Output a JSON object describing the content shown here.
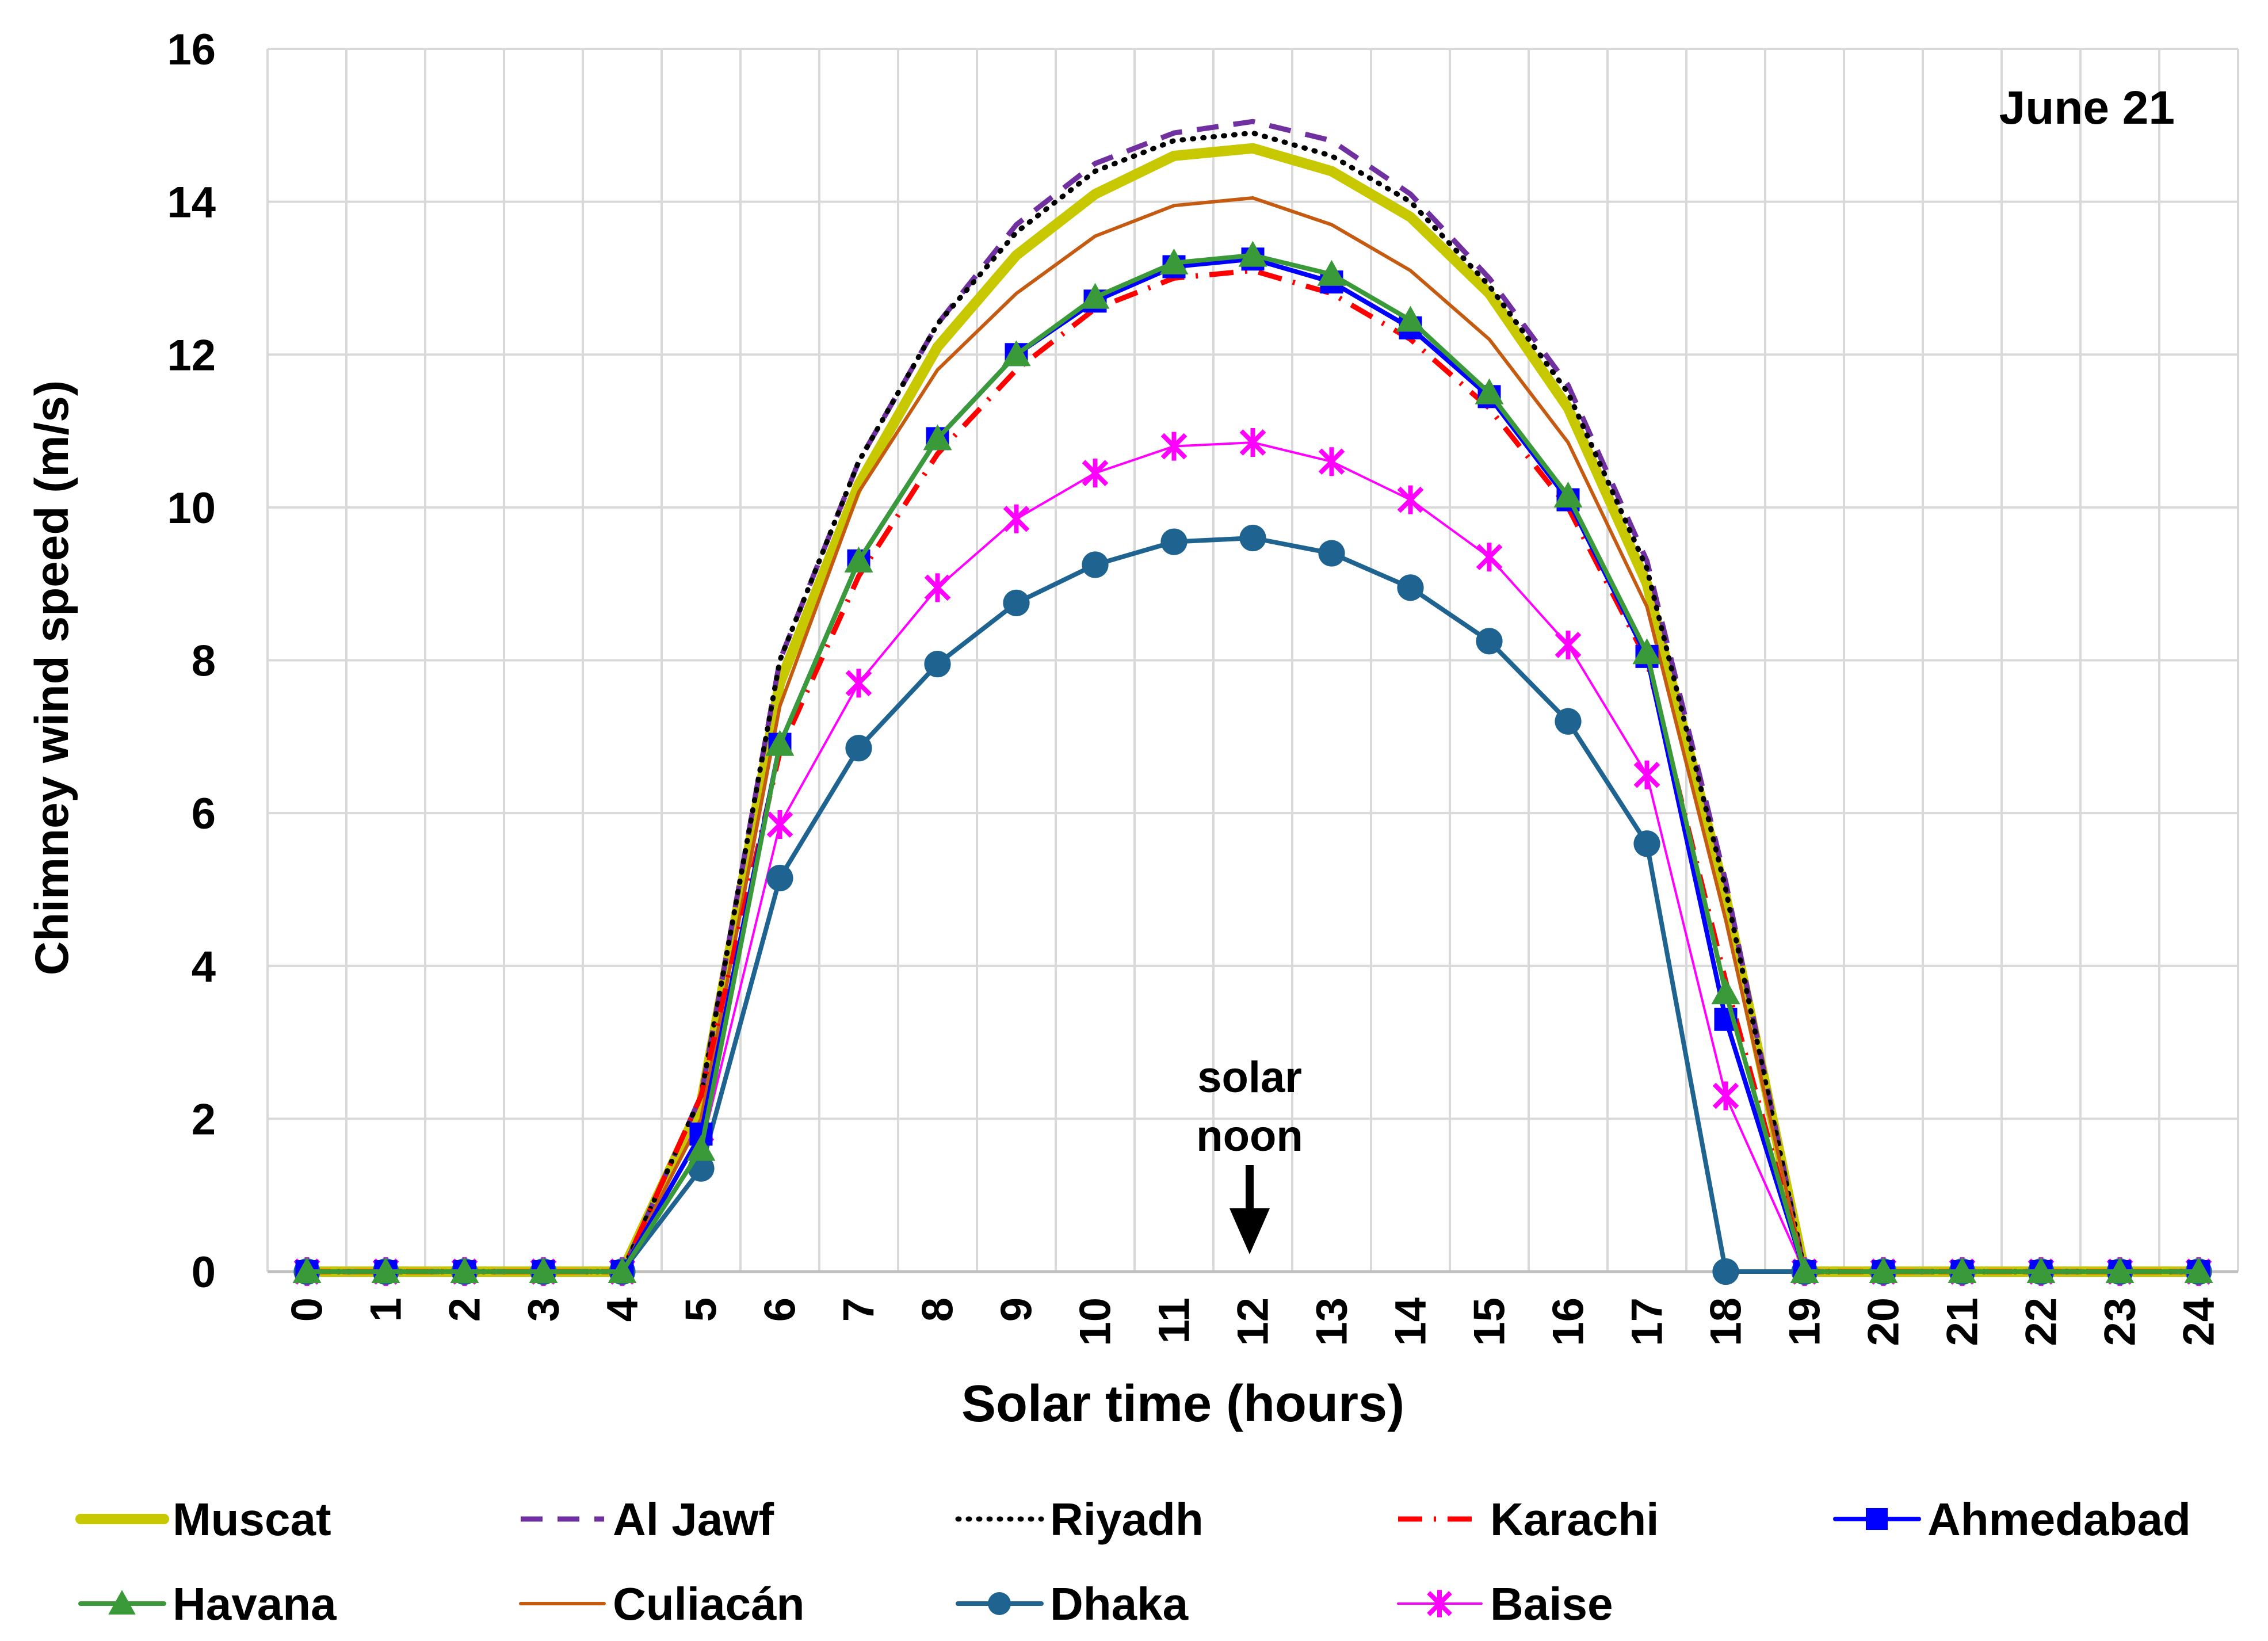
{
  "chart_data": {
    "type": "line",
    "title": "June 21",
    "xlabel": "Solar time (hours)",
    "ylabel": "Chimney wind speed (m/s)",
    "xlim": [
      0,
      24
    ],
    "ylim": [
      0,
      16
    ],
    "x": [
      0,
      1,
      2,
      3,
      4,
      5,
      6,
      7,
      8,
      9,
      10,
      11,
      12,
      13,
      14,
      15,
      16,
      17,
      18,
      19,
      20,
      21,
      22,
      23,
      24
    ],
    "y_ticks": [
      0,
      2,
      4,
      6,
      8,
      10,
      12,
      14,
      16
    ],
    "annotation": {
      "line1": "solar",
      "line2": "noon",
      "x": 12
    },
    "grid": true,
    "legend_position": "bottom",
    "series": [
      {
        "name": "Muscat",
        "color": "#c8c800",
        "style": "thick",
        "values": [
          0,
          0,
          0,
          0,
          0,
          2.2,
          7.7,
          10.3,
          12.1,
          13.3,
          14.1,
          14.6,
          14.7,
          14.4,
          13.8,
          12.8,
          11.3,
          9.0,
          4.9,
          0,
          0,
          0,
          0,
          0,
          0
        ]
      },
      {
        "name": "Al Jawf",
        "color": "#7030a0",
        "style": "dashed",
        "values": [
          0,
          0,
          0,
          0,
          0,
          2.3,
          8.0,
          10.6,
          12.4,
          13.7,
          14.5,
          14.9,
          15.05,
          14.8,
          14.1,
          13.0,
          11.6,
          9.3,
          5.1,
          0,
          0,
          0,
          0,
          0,
          0
        ]
      },
      {
        "name": "Riyadh",
        "color": "#000000",
        "style": "dotted",
        "values": [
          0,
          0,
          0,
          0,
          0,
          2.3,
          8.0,
          10.6,
          12.4,
          13.6,
          14.4,
          14.8,
          14.9,
          14.6,
          14.0,
          12.9,
          11.5,
          9.2,
          5.0,
          0,
          0,
          0,
          0,
          0,
          0
        ]
      },
      {
        "name": "Karachi",
        "color": "#ff0000",
        "style": "dashdot",
        "values": [
          0,
          0,
          0,
          0,
          0,
          2.3,
          6.8,
          9.1,
          10.7,
          11.8,
          12.6,
          13.0,
          13.1,
          12.8,
          12.2,
          11.3,
          10.0,
          8.0,
          3.8,
          0,
          0,
          0,
          0,
          0,
          0
        ]
      },
      {
        "name": "Ahmedabad",
        "color": "#0000ff",
        "style": "square",
        "values": [
          0,
          0,
          0,
          0,
          0,
          1.8,
          6.9,
          9.3,
          10.9,
          12.0,
          12.7,
          13.15,
          13.25,
          12.95,
          12.35,
          11.45,
          10.1,
          8.05,
          3.3,
          0,
          0,
          0,
          0,
          0,
          0
        ]
      },
      {
        "name": "Havana",
        "color": "#3a9a3a",
        "style": "triangle",
        "values": [
          0,
          0,
          0,
          0,
          0,
          1.6,
          6.9,
          9.3,
          10.9,
          12.0,
          12.75,
          13.2,
          13.3,
          13.05,
          12.45,
          11.5,
          10.15,
          8.1,
          3.65,
          0,
          0,
          0,
          0,
          0,
          0
        ]
      },
      {
        "name": "Culiacán",
        "color": "#c55a11",
        "style": "thin",
        "values": [
          0,
          0,
          0,
          0,
          0,
          2.0,
          7.4,
          10.2,
          11.8,
          12.8,
          13.55,
          13.95,
          14.05,
          13.7,
          13.1,
          12.2,
          10.85,
          8.7,
          4.6,
          0,
          0,
          0,
          0,
          0,
          0
        ]
      },
      {
        "name": "Dhaka",
        "color": "#1f6391",
        "style": "circle",
        "values": [
          0,
          0,
          0,
          0,
          0,
          1.35,
          5.15,
          6.85,
          7.95,
          8.75,
          9.25,
          9.55,
          9.6,
          9.4,
          8.95,
          8.25,
          7.2,
          5.6,
          0,
          0,
          0,
          0,
          0,
          0,
          0
        ]
      },
      {
        "name": "Baise",
        "color": "#ff00ff",
        "style": "star",
        "values": [
          0,
          0,
          0,
          0,
          0,
          1.6,
          5.85,
          7.7,
          8.95,
          9.85,
          10.45,
          10.8,
          10.85,
          10.6,
          10.1,
          9.35,
          8.2,
          6.5,
          2.3,
          0,
          0,
          0,
          0,
          0,
          0
        ]
      }
    ]
  }
}
